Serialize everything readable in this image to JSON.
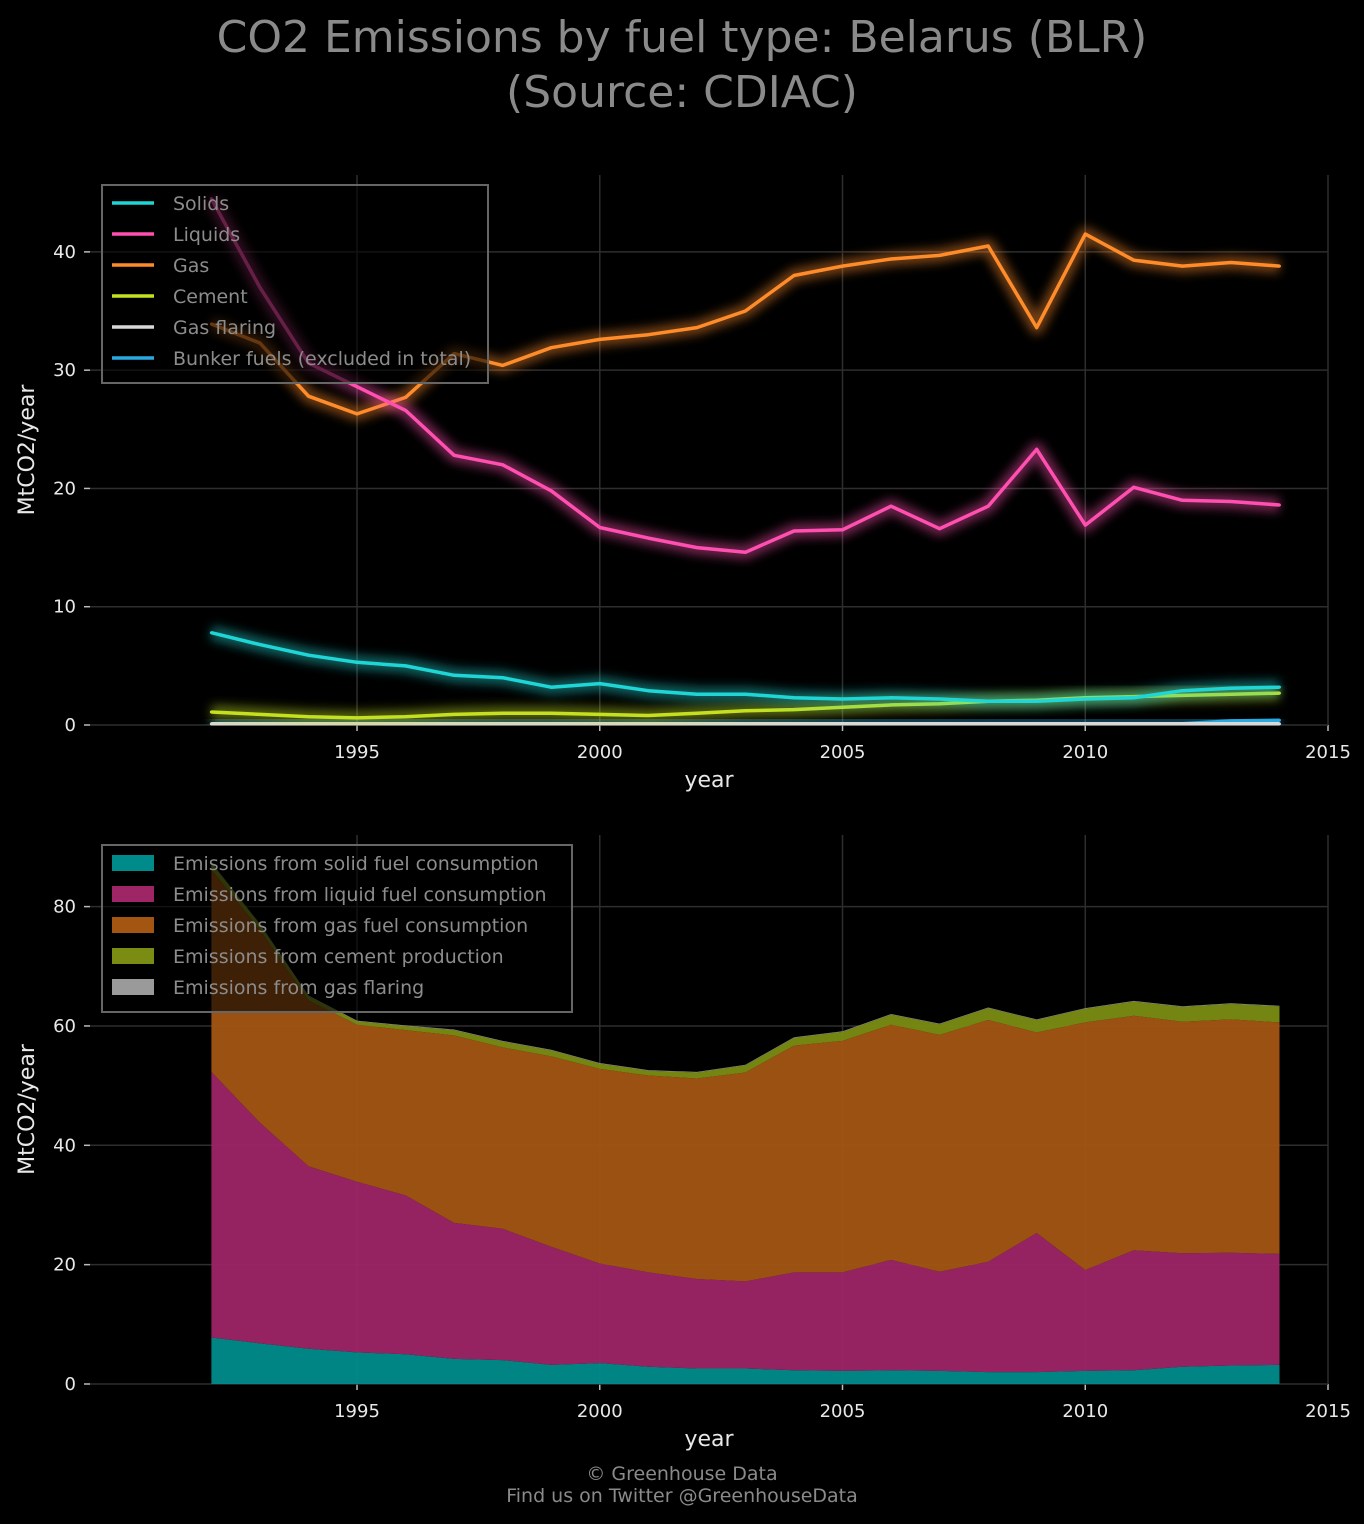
{
  "title": {
    "line1": "CO2 Emissions by fuel type: Belarus (BLR)",
    "line2": "(Source: CDIAC)"
  },
  "footer": {
    "line1": "© Greenhouse Data",
    "line2": "Find us on Twitter @GreenhouseData"
  },
  "chart_data": [
    {
      "type": "line",
      "xlabel": "year",
      "ylabel": "MtCO2/year",
      "xlim": [
        1989.5,
        2015
      ],
      "ylim": [
        0,
        46.5
      ],
      "xticks": [
        1995,
        2000,
        2005,
        2010,
        2015
      ],
      "yticks": [
        0,
        10,
        20,
        30,
        40
      ],
      "grid": true,
      "legend_position": "top-left",
      "x": [
        1992,
        1993,
        1994,
        1995,
        1996,
        1997,
        1998,
        1999,
        2000,
        2001,
        2002,
        2003,
        2004,
        2005,
        2006,
        2007,
        2008,
        2009,
        2010,
        2011,
        2012,
        2013,
        2014
      ],
      "series": [
        {
          "name": "Solids",
          "color": "#1fd6d6",
          "values": [
            7.8,
            6.8,
            5.9,
            5.3,
            5.0,
            4.2,
            4.0,
            3.2,
            3.5,
            2.9,
            2.6,
            2.6,
            2.3,
            2.2,
            2.3,
            2.2,
            2.0,
            2.0,
            2.2,
            2.3,
            2.9,
            3.1,
            3.2
          ]
        },
        {
          "name": "Liquids",
          "color": "#ff4fb0",
          "values": [
            44.5,
            37.0,
            30.6,
            28.6,
            26.6,
            22.8,
            22.0,
            19.8,
            16.7,
            15.8,
            15.0,
            14.6,
            16.4,
            16.5,
            18.5,
            16.6,
            18.5,
            23.3,
            16.9,
            20.1,
            19.0,
            18.9,
            18.6
          ]
        },
        {
          "name": "Gas",
          "color": "#ff8c2a",
          "values": [
            33.9,
            32.3,
            27.8,
            26.3,
            27.7,
            31.4,
            30.4,
            31.9,
            32.6,
            33.0,
            33.6,
            35.0,
            38.0,
            38.8,
            39.4,
            39.7,
            40.5,
            33.6,
            41.5,
            39.3,
            38.8,
            39.1,
            38.8
          ]
        },
        {
          "name": "Cement",
          "color": "#c5e01e",
          "values": [
            1.1,
            0.9,
            0.7,
            0.6,
            0.7,
            0.9,
            1.0,
            1.0,
            0.9,
            0.8,
            1.0,
            1.2,
            1.3,
            1.5,
            1.7,
            1.8,
            2.0,
            2.1,
            2.3,
            2.4,
            2.5,
            2.6,
            2.7
          ]
        },
        {
          "name": "Gas flaring",
          "color": "#d8d8d8",
          "values": [
            0.1,
            0.1,
            0.1,
            0.1,
            0.1,
            0.1,
            0.1,
            0.1,
            0.1,
            0.1,
            0.1,
            0.1,
            0.1,
            0.1,
            0.1,
            0.1,
            0.1,
            0.1,
            0.1,
            0.1,
            0.1,
            0.1,
            0.1
          ]
        },
        {
          "name": "Bunker fuels (excluded in total)",
          "color": "#2aa8e0",
          "values": [
            0.1,
            0.1,
            0.1,
            0.1,
            0.1,
            0.1,
            0.1,
            0.1,
            0.1,
            0.1,
            0.1,
            0.1,
            0.1,
            0.1,
            0.1,
            0.1,
            0.1,
            0.1,
            0.1,
            0.1,
            0.1,
            0.35,
            0.4
          ]
        }
      ]
    },
    {
      "type": "area",
      "stacked": true,
      "xlabel": "year",
      "ylabel": "MtCO2/year",
      "xlim": [
        1989.5,
        2015
      ],
      "ylim": [
        0,
        92
      ],
      "xticks": [
        1995,
        2000,
        2005,
        2010,
        2015
      ],
      "yticks": [
        0,
        20,
        40,
        60,
        80
      ],
      "grid": true,
      "legend_position": "top-left",
      "x": [
        1992,
        1993,
        1994,
        1995,
        1996,
        1997,
        1998,
        1999,
        2000,
        2001,
        2002,
        2003,
        2004,
        2005,
        2006,
        2007,
        2008,
        2009,
        2010,
        2011,
        2012,
        2013,
        2014
      ],
      "series": [
        {
          "name": "Emissions from solid fuel consumption",
          "color": "#008b8b",
          "values": [
            7.8,
            6.8,
            5.9,
            5.3,
            5.0,
            4.2,
            4.0,
            3.2,
            3.5,
            2.9,
            2.6,
            2.6,
            2.3,
            2.2,
            2.3,
            2.2,
            2.0,
            2.0,
            2.2,
            2.3,
            2.9,
            3.1,
            3.2
          ]
        },
        {
          "name": "Emissions from liquid fuel consumption",
          "color": "#9e2566",
          "values": [
            44.5,
            37.0,
            30.6,
            28.6,
            26.6,
            22.8,
            22.0,
            19.8,
            16.7,
            15.8,
            15.0,
            14.6,
            16.4,
            16.5,
            18.5,
            16.6,
            18.5,
            23.3,
            16.9,
            20.1,
            19.0,
            18.9,
            18.6
          ]
        },
        {
          "name": "Emissions from gas fuel consumption",
          "color": "#a35512",
          "values": [
            33.9,
            32.3,
            27.8,
            26.3,
            27.7,
            31.4,
            30.4,
            31.9,
            32.6,
            33.0,
            33.6,
            35.0,
            38.0,
            38.8,
            39.4,
            39.7,
            40.5,
            33.6,
            41.5,
            39.3,
            38.8,
            39.1,
            38.8
          ]
        },
        {
          "name": "Emissions from cement production",
          "color": "#7a8c12",
          "values": [
            1.1,
            0.9,
            0.7,
            0.6,
            0.7,
            0.9,
            1.0,
            1.0,
            0.9,
            0.8,
            1.0,
            1.2,
            1.3,
            1.5,
            1.7,
            1.8,
            2.0,
            2.1,
            2.3,
            2.4,
            2.5,
            2.6,
            2.7
          ]
        },
        {
          "name": "Emissions from gas flaring",
          "color": "#9a9a9a",
          "values": [
            0.1,
            0.1,
            0.1,
            0.1,
            0.1,
            0.1,
            0.1,
            0.1,
            0.1,
            0.1,
            0.1,
            0.1,
            0.1,
            0.1,
            0.1,
            0.1,
            0.1,
            0.1,
            0.1,
            0.1,
            0.1,
            0.1,
            0.1
          ]
        }
      ]
    }
  ]
}
